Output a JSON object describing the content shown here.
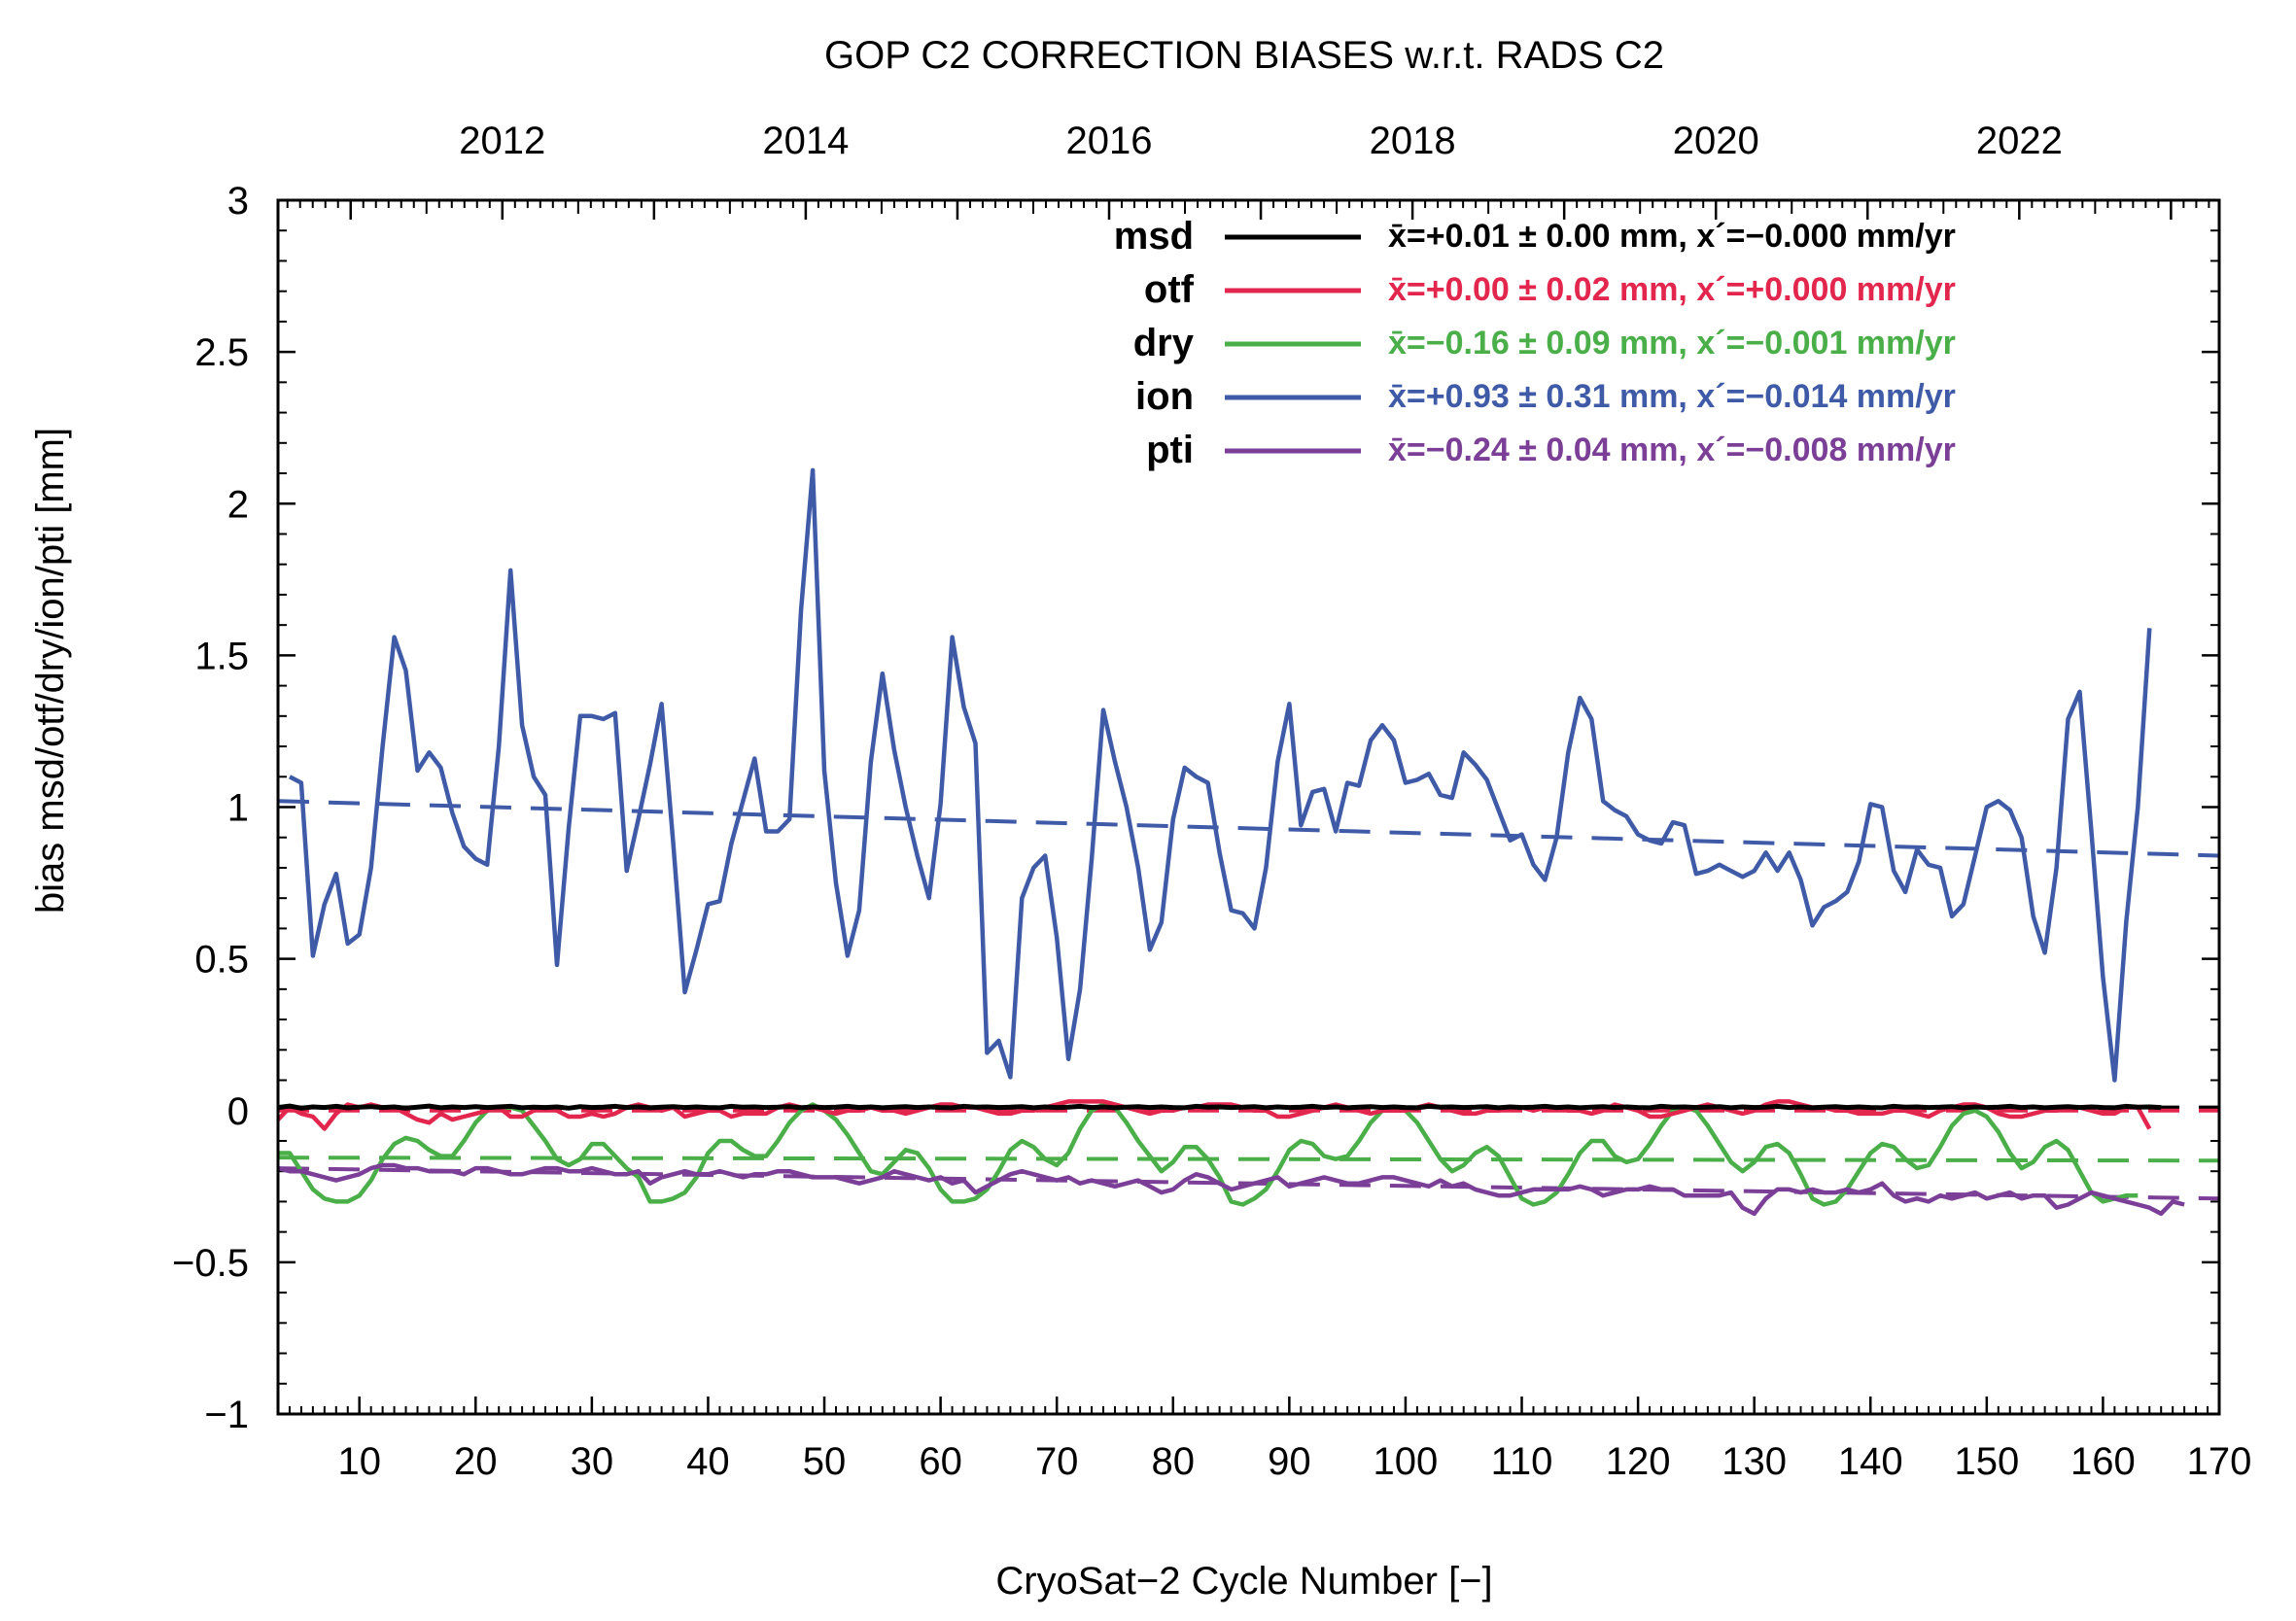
{
  "chart_data": {
    "type": "line",
    "title": "GOP C2 CORRECTION BIASES w.r.t. RADS C2",
    "xlabel": "CryoSat−2 Cycle Number [−]",
    "ylabel": "bias msd/otf/dry/ion/pti [mm]",
    "xlim": [
      3,
      170
    ],
    "ylim": [
      -1,
      3
    ],
    "x_ticks": [
      10,
      20,
      30,
      40,
      50,
      60,
      70,
      80,
      90,
      100,
      110,
      120,
      130,
      140,
      150,
      160,
      170
    ],
    "y_ticks": [
      -1,
      -0.5,
      0,
      0.5,
      1,
      1.5,
      2,
      2.5,
      3
    ],
    "y_tick_labels": [
      "−1",
      "−0.5",
      "0",
      "0.5",
      "1",
      "1.5",
      "2",
      "2.5",
      "3"
    ],
    "top_axis": {
      "labels": [
        "2012",
        "2014",
        "2016",
        "2018",
        "2020",
        "2022"
      ],
      "cycle_positions": [
        22.3,
        48.4,
        74.5,
        100.6,
        126.7,
        152.8
      ]
    },
    "series": [
      {
        "name": "msd",
        "color": "#000000",
        "stats": "x̄=+0.01 ± 0.00 mm, x´=−0.000 mm/yr",
        "trend": [
          [
            3,
            0.01
          ],
          [
            170,
            0.01
          ]
        ],
        "x_start": 3,
        "values": [
          0.01,
          0.015,
          0.008,
          0.012,
          0.01,
          0.014,
          0.009,
          0.011,
          0.013,
          0.01,
          0.012,
          0.008,
          0.011,
          0.015,
          0.009,
          0.012,
          0.01,
          0.013,
          0.01,
          0.012,
          0.014,
          0.009,
          0.011,
          0.01,
          0.012,
          0.008,
          0.013,
          0.01,
          0.011,
          0.014,
          0.01,
          0.012,
          0.009,
          0.011,
          0.013,
          0.01,
          0.012,
          0.01,
          0.009,
          0.014,
          0.011,
          0.012,
          0.01,
          0.011,
          0.013,
          0.009,
          0.012,
          0.01,
          0.011,
          0.014,
          0.01,
          0.012,
          0.009,
          0.011,
          0.013,
          0.01,
          0.012,
          0.01,
          0.009,
          0.014,
          0.011,
          0.012,
          0.01,
          0.011,
          0.013,
          0.009,
          0.012,
          0.01,
          0.011,
          0.014,
          0.01,
          0.012,
          0.009,
          0.011,
          0.013,
          0.01,
          0.012,
          0.01,
          0.009,
          0.014,
          0.011,
          0.012,
          0.01,
          0.011,
          0.013,
          0.009,
          0.012,
          0.01,
          0.011,
          0.014,
          0.01,
          0.012,
          0.009,
          0.011,
          0.013,
          0.01,
          0.012,
          0.01,
          0.009,
          0.014,
          0.011,
          0.012,
          0.01,
          0.011,
          0.013,
          0.009,
          0.012,
          0.01,
          0.011,
          0.014,
          0.01,
          0.012,
          0.009,
          0.011,
          0.013,
          0.01,
          0.012,
          0.01,
          0.009,
          0.014,
          0.011,
          0.012,
          0.01,
          0.011,
          0.013,
          0.009,
          0.012,
          0.01,
          0.011,
          0.014,
          0.01,
          0.012,
          0.009,
          0.011,
          0.013,
          0.01,
          0.012,
          0.01,
          0.009,
          0.014,
          0.011,
          0.012,
          0.01,
          0.011,
          0.013,
          0.009,
          0.012,
          0.01,
          0.011,
          0.014,
          0.01,
          0.012,
          0.009,
          0.011,
          0.013,
          0.01,
          0.012,
          0.01,
          0.009,
          0.014,
          0.011,
          0.012,
          0.01
        ]
      },
      {
        "name": "otf",
        "color": "#e2264d",
        "stats": "x̄=+0.00 ± 0.02 mm, x´=+0.000 mm/yr",
        "trend": [
          [
            3,
            0.0
          ],
          [
            170,
            0.0
          ]
        ],
        "x_start": 3,
        "values": [
          -0.03,
          0.01,
          -0.01,
          -0.02,
          -0.06,
          -0.01,
          0.02,
          0.01,
          0.02,
          0.01,
          0.01,
          -0.01,
          -0.03,
          -0.04,
          -0.01,
          -0.03,
          -0.02,
          -0.01,
          0.0,
          0.01,
          -0.02,
          -0.02,
          0.0,
          0.01,
          0.0,
          -0.02,
          -0.02,
          -0.01,
          -0.02,
          -0.01,
          0.01,
          0.02,
          0.01,
          0.0,
          0.01,
          -0.02,
          -0.01,
          0.0,
          0.0,
          -0.02,
          -0.01,
          -0.01,
          -0.01,
          0.01,
          0.02,
          0.01,
          0.01,
          0.0,
          -0.01,
          0.0,
          0.0,
          0.01,
          0.0,
          0.0,
          -0.01,
          0.0,
          0.01,
          0.02,
          0.02,
          0.01,
          0.01,
          0.0,
          -0.01,
          -0.01,
          0.0,
          0.0,
          0.01,
          0.02,
          0.03,
          0.03,
          0.03,
          0.03,
          0.02,
          0.01,
          0.0,
          -0.01,
          0.0,
          0.0,
          0.01,
          0.01,
          0.02,
          0.02,
          0.02,
          0.01,
          0.0,
          0.0,
          -0.02,
          -0.02,
          -0.01,
          0.0,
          0.01,
          0.02,
          0.01,
          0.0,
          -0.01,
          0.0,
          0.0,
          0.0,
          0.01,
          0.02,
          0.01,
          0.0,
          -0.01,
          -0.01,
          0.0,
          0.0,
          0.01,
          0.01,
          0.0,
          0.01,
          0.01,
          0.0,
          0.0,
          -0.01,
          0.0,
          0.02,
          0.01,
          0.0,
          -0.02,
          -0.02,
          -0.01,
          0.0,
          0.01,
          0.02,
          0.01,
          0.0,
          -0.01,
          0.0,
          0.02,
          0.03,
          0.03,
          0.02,
          0.01,
          0.01,
          0.0,
          0.0,
          -0.01,
          -0.01,
          -0.01,
          0.0,
          0.0,
          -0.01,
          -0.02,
          0.0,
          0.01,
          0.02,
          0.02,
          0.01,
          -0.01,
          -0.02,
          -0.02,
          -0.01,
          0.0,
          0.0,
          0.01,
          0.01,
          0.0,
          -0.01,
          -0.01,
          0.01,
          0.01,
          -0.06
        ]
      },
      {
        "name": "dry",
        "color": "#4aaf48",
        "stats": "x̄=−0.16 ± 0.09 mm, x´=−0.001 mm/yr",
        "trend": [
          [
            3,
            -0.155
          ],
          [
            170,
            -0.165
          ]
        ],
        "x_start": 3,
        "values": [
          -0.14,
          -0.14,
          -0.2,
          -0.26,
          -0.29,
          -0.3,
          -0.3,
          -0.28,
          -0.23,
          -0.16,
          -0.11,
          -0.09,
          -0.1,
          -0.13,
          -0.15,
          -0.15,
          -0.1,
          -0.04,
          0.0,
          0.01,
          0.01,
          0.0,
          -0.05,
          -0.1,
          -0.16,
          -0.18,
          -0.16,
          -0.11,
          -0.11,
          -0.15,
          -0.19,
          -0.22,
          -0.3,
          -0.3,
          -0.29,
          -0.27,
          -0.22,
          -0.14,
          -0.1,
          -0.1,
          -0.13,
          -0.15,
          -0.15,
          -0.1,
          -0.04,
          0.0,
          0.02,
          0.0,
          -0.03,
          -0.08,
          -0.14,
          -0.2,
          -0.21,
          -0.17,
          -0.13,
          -0.14,
          -0.19,
          -0.26,
          -0.3,
          -0.3,
          -0.29,
          -0.26,
          -0.2,
          -0.13,
          -0.1,
          -0.12,
          -0.16,
          -0.18,
          -0.14,
          -0.06,
          0.0,
          0.02,
          0.01,
          -0.04,
          -0.1,
          -0.15,
          -0.2,
          -0.17,
          -0.12,
          -0.12,
          -0.16,
          -0.22,
          -0.3,
          -0.31,
          -0.29,
          -0.26,
          -0.2,
          -0.13,
          -0.1,
          -0.11,
          -0.15,
          -0.16,
          -0.15,
          -0.1,
          -0.04,
          0.0,
          0.01,
          0.0,
          -0.04,
          -0.1,
          -0.16,
          -0.2,
          -0.18,
          -0.14,
          -0.12,
          -0.15,
          -0.22,
          -0.29,
          -0.31,
          -0.3,
          -0.27,
          -0.21,
          -0.14,
          -0.1,
          -0.1,
          -0.15,
          -0.17,
          -0.16,
          -0.11,
          -0.05,
          0.0,
          0.01,
          0.0,
          -0.05,
          -0.11,
          -0.17,
          -0.2,
          -0.17,
          -0.12,
          -0.11,
          -0.14,
          -0.21,
          -0.29,
          -0.31,
          -0.3,
          -0.26,
          -0.2,
          -0.14,
          -0.11,
          -0.12,
          -0.16,
          -0.19,
          -0.18,
          -0.12,
          -0.05,
          -0.01,
          0.0,
          -0.02,
          -0.07,
          -0.14,
          -0.19,
          -0.17,
          -0.12,
          -0.1,
          -0.13,
          -0.2,
          -0.27,
          -0.3,
          -0.29,
          -0.28,
          -0.28
        ]
      },
      {
        "name": "ion",
        "color": "#3f5ba8",
        "stats": "x̄=+0.93 ± 0.31 mm, x´=−0.014 mm/yr",
        "trend": [
          [
            3,
            1.02
          ],
          [
            170,
            0.84
          ]
        ],
        "x_start": 4,
        "values": [
          1.1,
          1.08,
          0.51,
          0.68,
          0.78,
          0.55,
          0.58,
          0.8,
          1.2,
          1.56,
          1.45,
          1.12,
          1.18,
          1.13,
          0.98,
          0.87,
          0.83,
          0.81,
          1.2,
          1.78,
          1.27,
          1.1,
          1.04,
          0.48,
          0.93,
          1.3,
          1.3,
          1.29,
          1.31,
          0.79,
          0.96,
          1.14,
          1.34,
          0.88,
          0.39,
          0.53,
          0.68,
          0.69,
          0.88,
          1.02,
          1.16,
          0.92,
          0.92,
          0.96,
          1.65,
          2.11,
          1.12,
          0.75,
          0.51,
          0.66,
          1.15,
          1.44,
          1.19,
          1.0,
          0.84,
          0.7,
          1.01,
          1.56,
          1.33,
          1.21,
          0.19,
          0.23,
          0.11,
          0.7,
          0.8,
          0.84,
          0.57,
          0.17,
          0.4,
          0.83,
          1.32,
          1.15,
          1.0,
          0.8,
          0.53,
          0.62,
          0.96,
          1.13,
          1.1,
          1.08,
          0.85,
          0.66,
          0.65,
          0.6,
          0.8,
          1.15,
          1.34,
          0.94,
          1.05,
          1.06,
          0.92,
          1.08,
          1.07,
          1.22,
          1.27,
          1.22,
          1.08,
          1.09,
          1.11,
          1.04,
          1.03,
          1.18,
          1.14,
          1.09,
          0.99,
          0.89,
          0.91,
          0.81,
          0.76,
          0.9,
          1.18,
          1.36,
          1.29,
          1.02,
          0.99,
          0.97,
          0.91,
          0.89,
          0.88,
          0.95,
          0.94,
          0.78,
          0.79,
          0.81,
          0.79,
          0.77,
          0.79,
          0.85,
          0.79,
          0.85,
          0.76,
          0.61,
          0.67,
          0.69,
          0.72,
          0.82,
          1.01,
          1.0,
          0.79,
          0.72,
          0.86,
          0.81,
          0.8,
          0.64,
          0.68,
          0.84,
          1.0,
          1.02,
          0.99,
          0.9,
          0.64,
          0.52,
          0.8,
          1.29,
          1.38,
          0.92,
          0.44,
          0.1,
          0.62,
          1.0,
          1.59
        ]
      },
      {
        "name": "pti",
        "color": "#7b3f97",
        "stats": "x̄=−0.24 ± 0.04 mm, x´=−0.008 mm/yr",
        "trend": [
          [
            3,
            -0.19
          ],
          [
            170,
            -0.29
          ]
        ],
        "x_start": 3,
        "values": [
          -0.19,
          -0.2,
          -0.2,
          -0.21,
          -0.22,
          -0.23,
          -0.22,
          -0.21,
          -0.19,
          -0.18,
          -0.18,
          -0.19,
          -0.19,
          -0.2,
          -0.2,
          -0.2,
          -0.21,
          -0.19,
          -0.19,
          -0.2,
          -0.21,
          -0.21,
          -0.2,
          -0.19,
          -0.19,
          -0.2,
          -0.2,
          -0.19,
          -0.2,
          -0.21,
          -0.21,
          -0.2,
          -0.24,
          -0.22,
          -0.21,
          -0.2,
          -0.21,
          -0.21,
          -0.2,
          -0.21,
          -0.22,
          -0.21,
          -0.21,
          -0.2,
          -0.2,
          -0.21,
          -0.22,
          -0.22,
          -0.22,
          -0.23,
          -0.24,
          -0.23,
          -0.22,
          -0.2,
          -0.21,
          -0.22,
          -0.23,
          -0.22,
          -0.24,
          -0.23,
          -0.27,
          -0.25,
          -0.23,
          -0.21,
          -0.2,
          -0.21,
          -0.22,
          -0.23,
          -0.22,
          -0.24,
          -0.23,
          -0.24,
          -0.25,
          -0.24,
          -0.23,
          -0.25,
          -0.27,
          -0.26,
          -0.23,
          -0.21,
          -0.22,
          -0.24,
          -0.26,
          -0.25,
          -0.24,
          -0.23,
          -0.22,
          -0.25,
          -0.24,
          -0.23,
          -0.22,
          -0.23,
          -0.24,
          -0.24,
          -0.23,
          -0.22,
          -0.22,
          -0.23,
          -0.24,
          -0.25,
          -0.23,
          -0.25,
          -0.24,
          -0.26,
          -0.27,
          -0.28,
          -0.28,
          -0.27,
          -0.26,
          -0.26,
          -0.26,
          -0.26,
          -0.25,
          -0.26,
          -0.28,
          -0.27,
          -0.26,
          -0.26,
          -0.25,
          -0.26,
          -0.26,
          -0.28,
          -0.28,
          -0.28,
          -0.28,
          -0.27,
          -0.32,
          -0.34,
          -0.29,
          -0.26,
          -0.26,
          -0.27,
          -0.26,
          -0.27,
          -0.27,
          -0.26,
          -0.27,
          -0.26,
          -0.24,
          -0.28,
          -0.3,
          -0.29,
          -0.3,
          -0.28,
          -0.29,
          -0.28,
          -0.27,
          -0.29,
          -0.28,
          -0.27,
          -0.29,
          -0.28,
          -0.28,
          -0.32,
          -0.31,
          -0.29,
          -0.27,
          -0.28,
          -0.29,
          -0.3,
          -0.31,
          -0.32,
          -0.34,
          -0.3,
          -0.31
        ]
      }
    ],
    "legend_position": "top-right"
  }
}
